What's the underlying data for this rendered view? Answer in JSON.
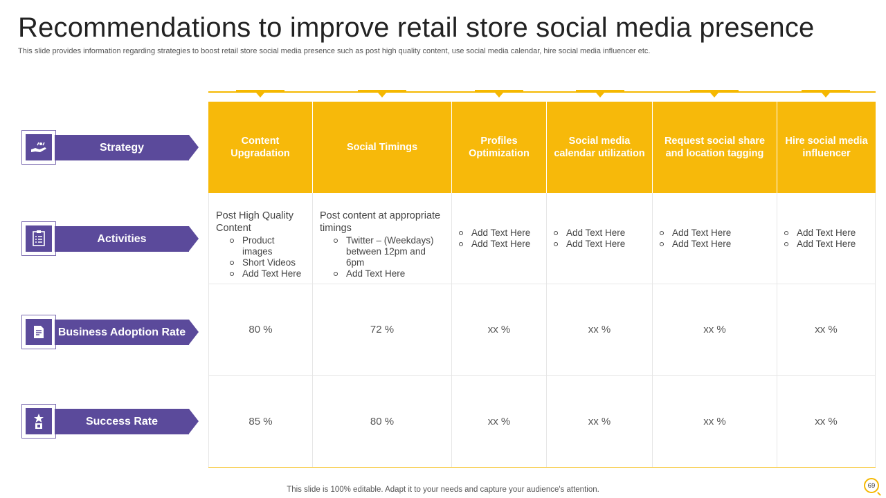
{
  "title": "Recommendations to improve retail store social media presence",
  "subtitle": "This slide provides information regarding strategies to boost retail store social media presence such as post high quality content, use social media calendar, hire social media influencer etc.",
  "rows": [
    {
      "label": "Strategy",
      "icon": "handshake-icon"
    },
    {
      "label": "Activities",
      "icon": "checklist-icon"
    },
    {
      "label": "Business Adoption Rate",
      "icon": "document-icon"
    },
    {
      "label": "Success Rate",
      "icon": "trophy-icon"
    }
  ],
  "columns": [
    "Content Upgradation",
    "Social Timings",
    "Profiles Optimization",
    "Social media calendar utilization",
    "Request social share and location tagging",
    "Hire social media influencer"
  ],
  "activities": {
    "col0": {
      "lead": "Post High Quality Content",
      "items": [
        "Product images",
        "Short Videos",
        "Add Text Here"
      ]
    },
    "col1": {
      "lead": "Post content at appropriate timings",
      "items": [
        "Twitter – (Weekdays) between 12pm and 6pm",
        "Add Text Here"
      ]
    },
    "col2": {
      "items": [
        "Add Text Here",
        "Add Text Here"
      ]
    },
    "col3": {
      "items": [
        "Add Text Here",
        "Add Text Here"
      ]
    },
    "col4": {
      "items": [
        "Add Text Here",
        "Add Text Here"
      ]
    },
    "col5": {
      "items": [
        "Add Text Here",
        "Add Text Here"
      ]
    }
  },
  "adoption_rate": [
    "80 %",
    "72 %",
    "xx %",
    "xx %",
    "xx %",
    "xx %"
  ],
  "success_rate": [
    "85 %",
    "80 %",
    "xx %",
    "xx %",
    "xx %",
    "xx %"
  ],
  "chevron": "›",
  "footer": "This slide is 100% editable. Adapt it to your needs and capture your audience's attention.",
  "page_number": "69",
  "colors": {
    "accent": "#f7b90a",
    "purple": "#5b4a9b"
  }
}
